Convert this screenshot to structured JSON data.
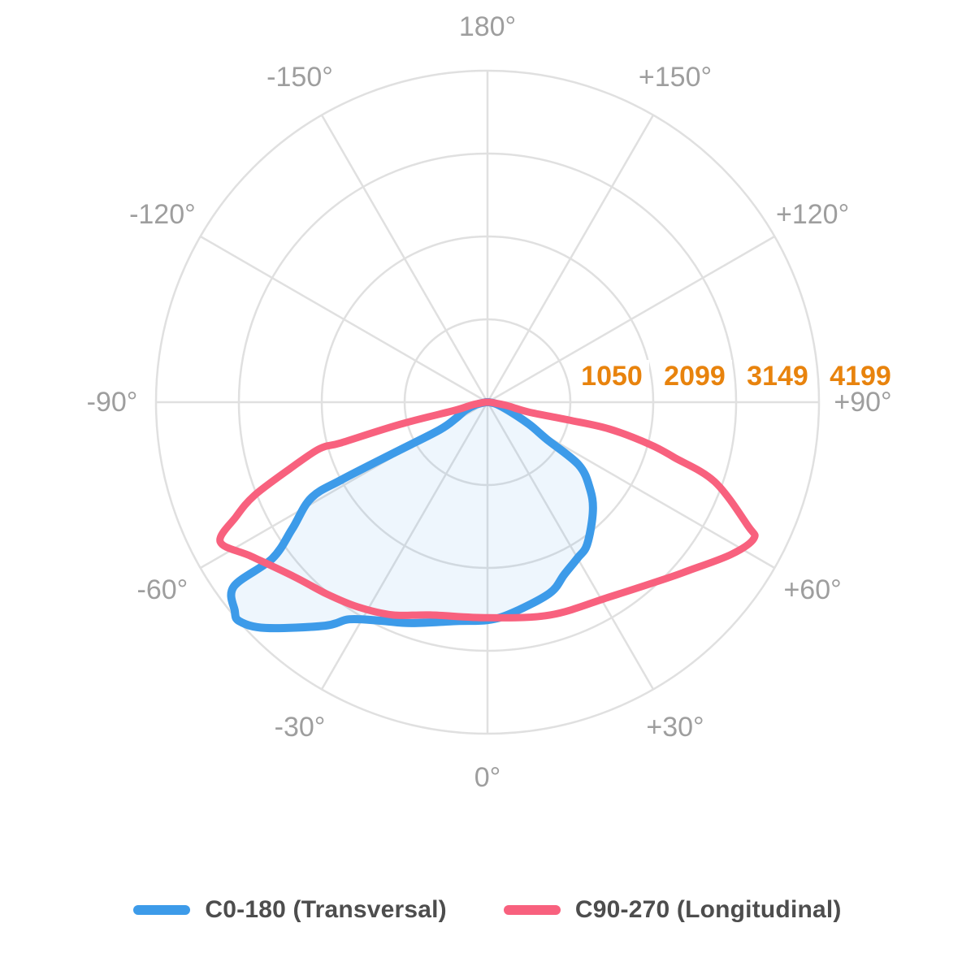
{
  "page": {
    "background": "#ffffff"
  },
  "chart_data": {
    "type": "line",
    "projection": "polar",
    "title": "",
    "angle_unit": "degrees",
    "angle_zero_position": "bottom",
    "grid": {
      "rings": 4,
      "spoke_step_deg": 30,
      "color": "#e0e0e0",
      "on": true
    },
    "radial_max": 4199,
    "radial_ticks": [
      "1050",
      "2099",
      "3149",
      "4199"
    ],
    "radial_tick_values": [
      1050,
      2099,
      3149,
      4199
    ],
    "angle_labels": [
      {
        "text": "180°",
        "deg": 180
      },
      {
        "text": "-150°",
        "deg": -150
      },
      {
        "text": "+150°",
        "deg": 150
      },
      {
        "text": "-120°",
        "deg": -120
      },
      {
        "text": "+120°",
        "deg": 120
      },
      {
        "text": "-90°",
        "deg": -90
      },
      {
        "text": "+90°",
        "deg": 90
      },
      {
        "text": "-60°",
        "deg": -60
      },
      {
        "text": "+60°",
        "deg": 60
      },
      {
        "text": "-30°",
        "deg": -30
      },
      {
        "text": "+30°",
        "deg": 30
      },
      {
        "text": "0°",
        "deg": 0
      }
    ],
    "legend_position": "bottom",
    "colors": {
      "angle_label": "#9e9e9e",
      "radial_tick": "#e8830d",
      "legend_text": "#4d4d4d",
      "grid": "#e0e0e0"
    },
    "series": [
      {
        "name": "C0-180 (Transversal)",
        "color": "#3d9be9",
        "fill": "rgba(61,155,233,0.09)",
        "line_width": 10,
        "points": [
          [
            -90,
            20
          ],
          [
            -78,
            150
          ],
          [
            -70,
            300
          ],
          [
            -63,
            450
          ],
          [
            -60,
            700
          ],
          [
            -61.5,
            1330
          ],
          [
            -62,
            2090
          ],
          [
            -61.5,
            2540
          ],
          [
            -57,
            2950
          ],
          [
            -54,
            3370
          ],
          [
            -54,
            3970
          ],
          [
            -50.5,
            4150
          ],
          [
            -48.5,
            4190
          ],
          [
            -44.5,
            4010
          ],
          [
            -36,
            3500
          ],
          [
            -32.5,
            3260
          ],
          [
            -26,
            3080
          ],
          [
            -19,
            2960
          ],
          [
            -8,
            2800
          ],
          [
            0,
            2760
          ],
          [
            6.5,
            2690
          ],
          [
            18,
            2545
          ],
          [
            24,
            2390
          ],
          [
            30,
            2280
          ],
          [
            35,
            2200
          ],
          [
            44,
            1922
          ],
          [
            50,
            1690
          ],
          [
            55.5,
            1400
          ],
          [
            58,
            885
          ],
          [
            62,
            600
          ],
          [
            68,
            300
          ],
          [
            78,
            120
          ],
          [
            90,
            20
          ]
        ]
      },
      {
        "name": "C90-270 (Longitudinal)",
        "color": "#f8617e",
        "fill": "none",
        "line_width": 9,
        "points": [
          [
            -90,
            30
          ],
          [
            -80,
            200
          ],
          [
            -76,
            420
          ],
          [
            -75.8,
            1140
          ],
          [
            -74.5,
            1920
          ],
          [
            -74.5,
            2210
          ],
          [
            -71.4,
            2640
          ],
          [
            -68.2,
            3180
          ],
          [
            -65.5,
            3500
          ],
          [
            -62.4,
            3820
          ],
          [
            -56.8,
            3570
          ],
          [
            -48,
            3300
          ],
          [
            -40,
            3170
          ],
          [
            -32.4,
            3070
          ],
          [
            -24,
            2950
          ],
          [
            -15,
            2790
          ],
          [
            0,
            2730
          ],
          [
            16.4,
            2810
          ],
          [
            32,
            2910
          ],
          [
            45.4,
            3180
          ],
          [
            50,
            3320
          ],
          [
            58,
            3640
          ],
          [
            62.9,
            3790
          ],
          [
            64.6,
            3650
          ],
          [
            70.7,
            3050
          ],
          [
            73.5,
            2470
          ],
          [
            75.4,
            2130
          ],
          [
            77.6,
            1580
          ],
          [
            77.6,
            1050
          ],
          [
            76.5,
            530
          ],
          [
            80,
            250
          ],
          [
            90,
            30
          ]
        ]
      }
    ]
  }
}
